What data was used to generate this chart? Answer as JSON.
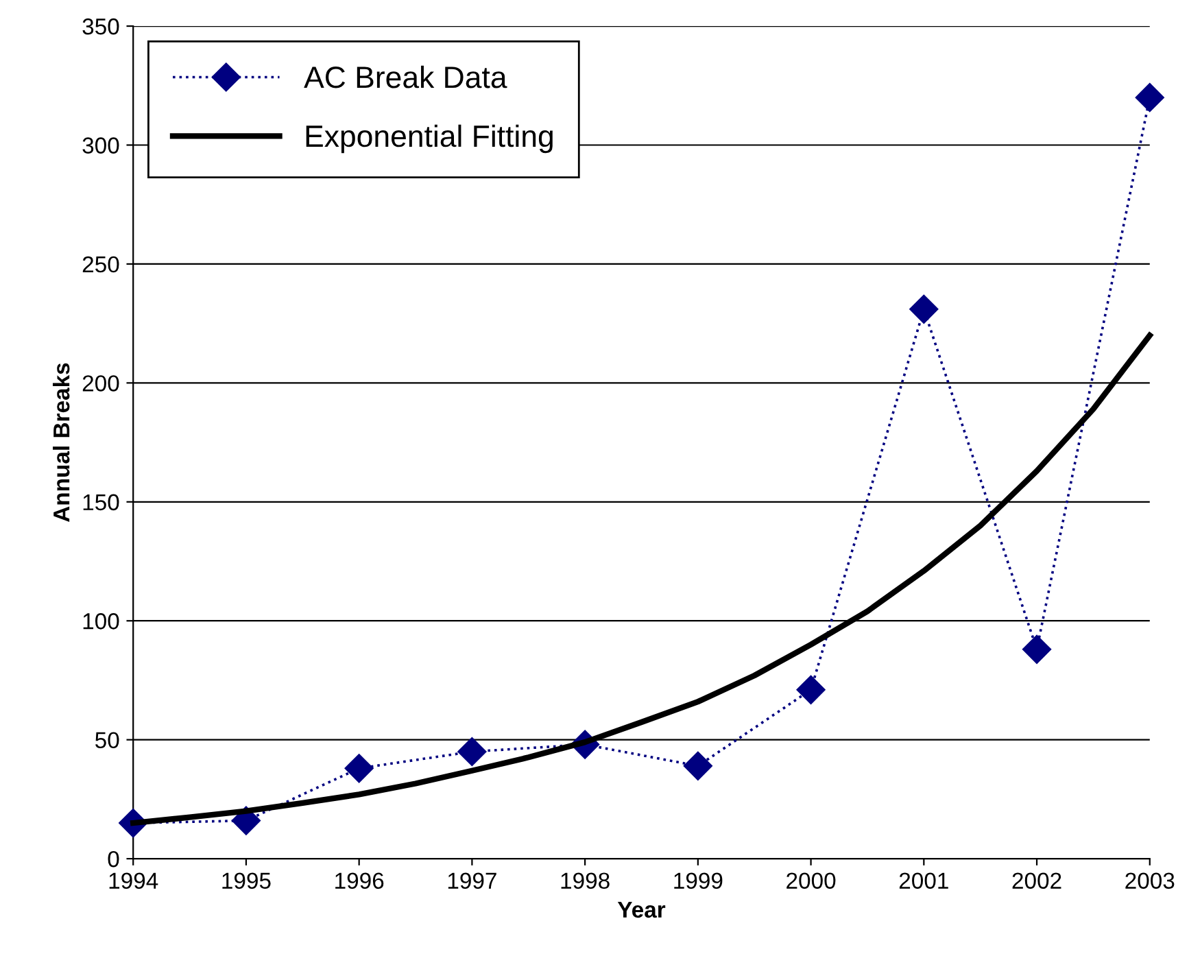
{
  "chart_data": {
    "type": "line",
    "xlabel": "Year",
    "ylabel": "Annual Breaks",
    "xlim": [
      1994,
      2003
    ],
    "xticks": [
      1994,
      1995,
      1996,
      1997,
      1998,
      1999,
      2000,
      2001,
      2002,
      2003
    ],
    "ylim": [
      0,
      350
    ],
    "yticks": [
      0,
      50,
      100,
      150,
      200,
      250,
      300,
      350
    ],
    "grid": "y",
    "legend": "top left",
    "series": [
      {
        "name": "AC Break Data",
        "color": "#000080",
        "marker": "diamond",
        "line_style": "dotted",
        "x": [
          1994,
          1995,
          1996,
          1997,
          1998,
          1999,
          2000,
          2001,
          2002,
          2003
        ],
        "values": [
          15,
          16,
          38,
          45,
          48,
          39,
          71,
          231,
          88,
          320
        ]
      },
      {
        "name": "Exponential Fitting",
        "color": "#000000",
        "marker": "none",
        "line_style": "solid",
        "x": [
          1994,
          1994.5,
          1995,
          1995.5,
          1996,
          1996.5,
          1997,
          1997.5,
          1998,
          1998.5,
          1999,
          1999.5,
          2000,
          2000.5,
          2001,
          2001.5,
          2002,
          2002.5,
          2003
        ],
        "values": [
          15,
          17.4,
          20,
          23.4,
          27,
          31.6,
          37,
          42.6,
          49,
          57.4,
          66,
          77,
          90,
          104,
          121,
          140,
          163,
          189,
          220
        ]
      }
    ]
  }
}
